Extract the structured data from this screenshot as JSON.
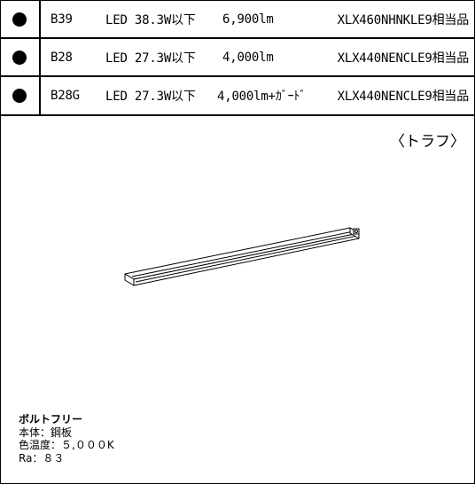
{
  "rows": [
    {
      "code": "B39",
      "power": "LED 38.3W以下",
      "lumen": "6,900lm",
      "model": "XLX460NHNKLE9相当品"
    },
    {
      "code": "B28",
      "power": "LED 27.3W以下",
      "lumen": "4,000lm",
      "model": "XLX440NENCLE9相当品"
    },
    {
      "code": "B28G",
      "power": "LED 27.3W以下",
      "lumen": "4,000lm+ｶﾞｰﾄﾞ",
      "model": "XLX440NENCLE9相当品"
    }
  ],
  "caption": "〈トラフ〉",
  "fixture_icon": "trough-light-fixture-drawing",
  "specs": {
    "title": "ボルトフリー",
    "body": "本体：鋼板",
    "color_temp": "色温度：５,０００K",
    "ra": "Ra：８３"
  }
}
